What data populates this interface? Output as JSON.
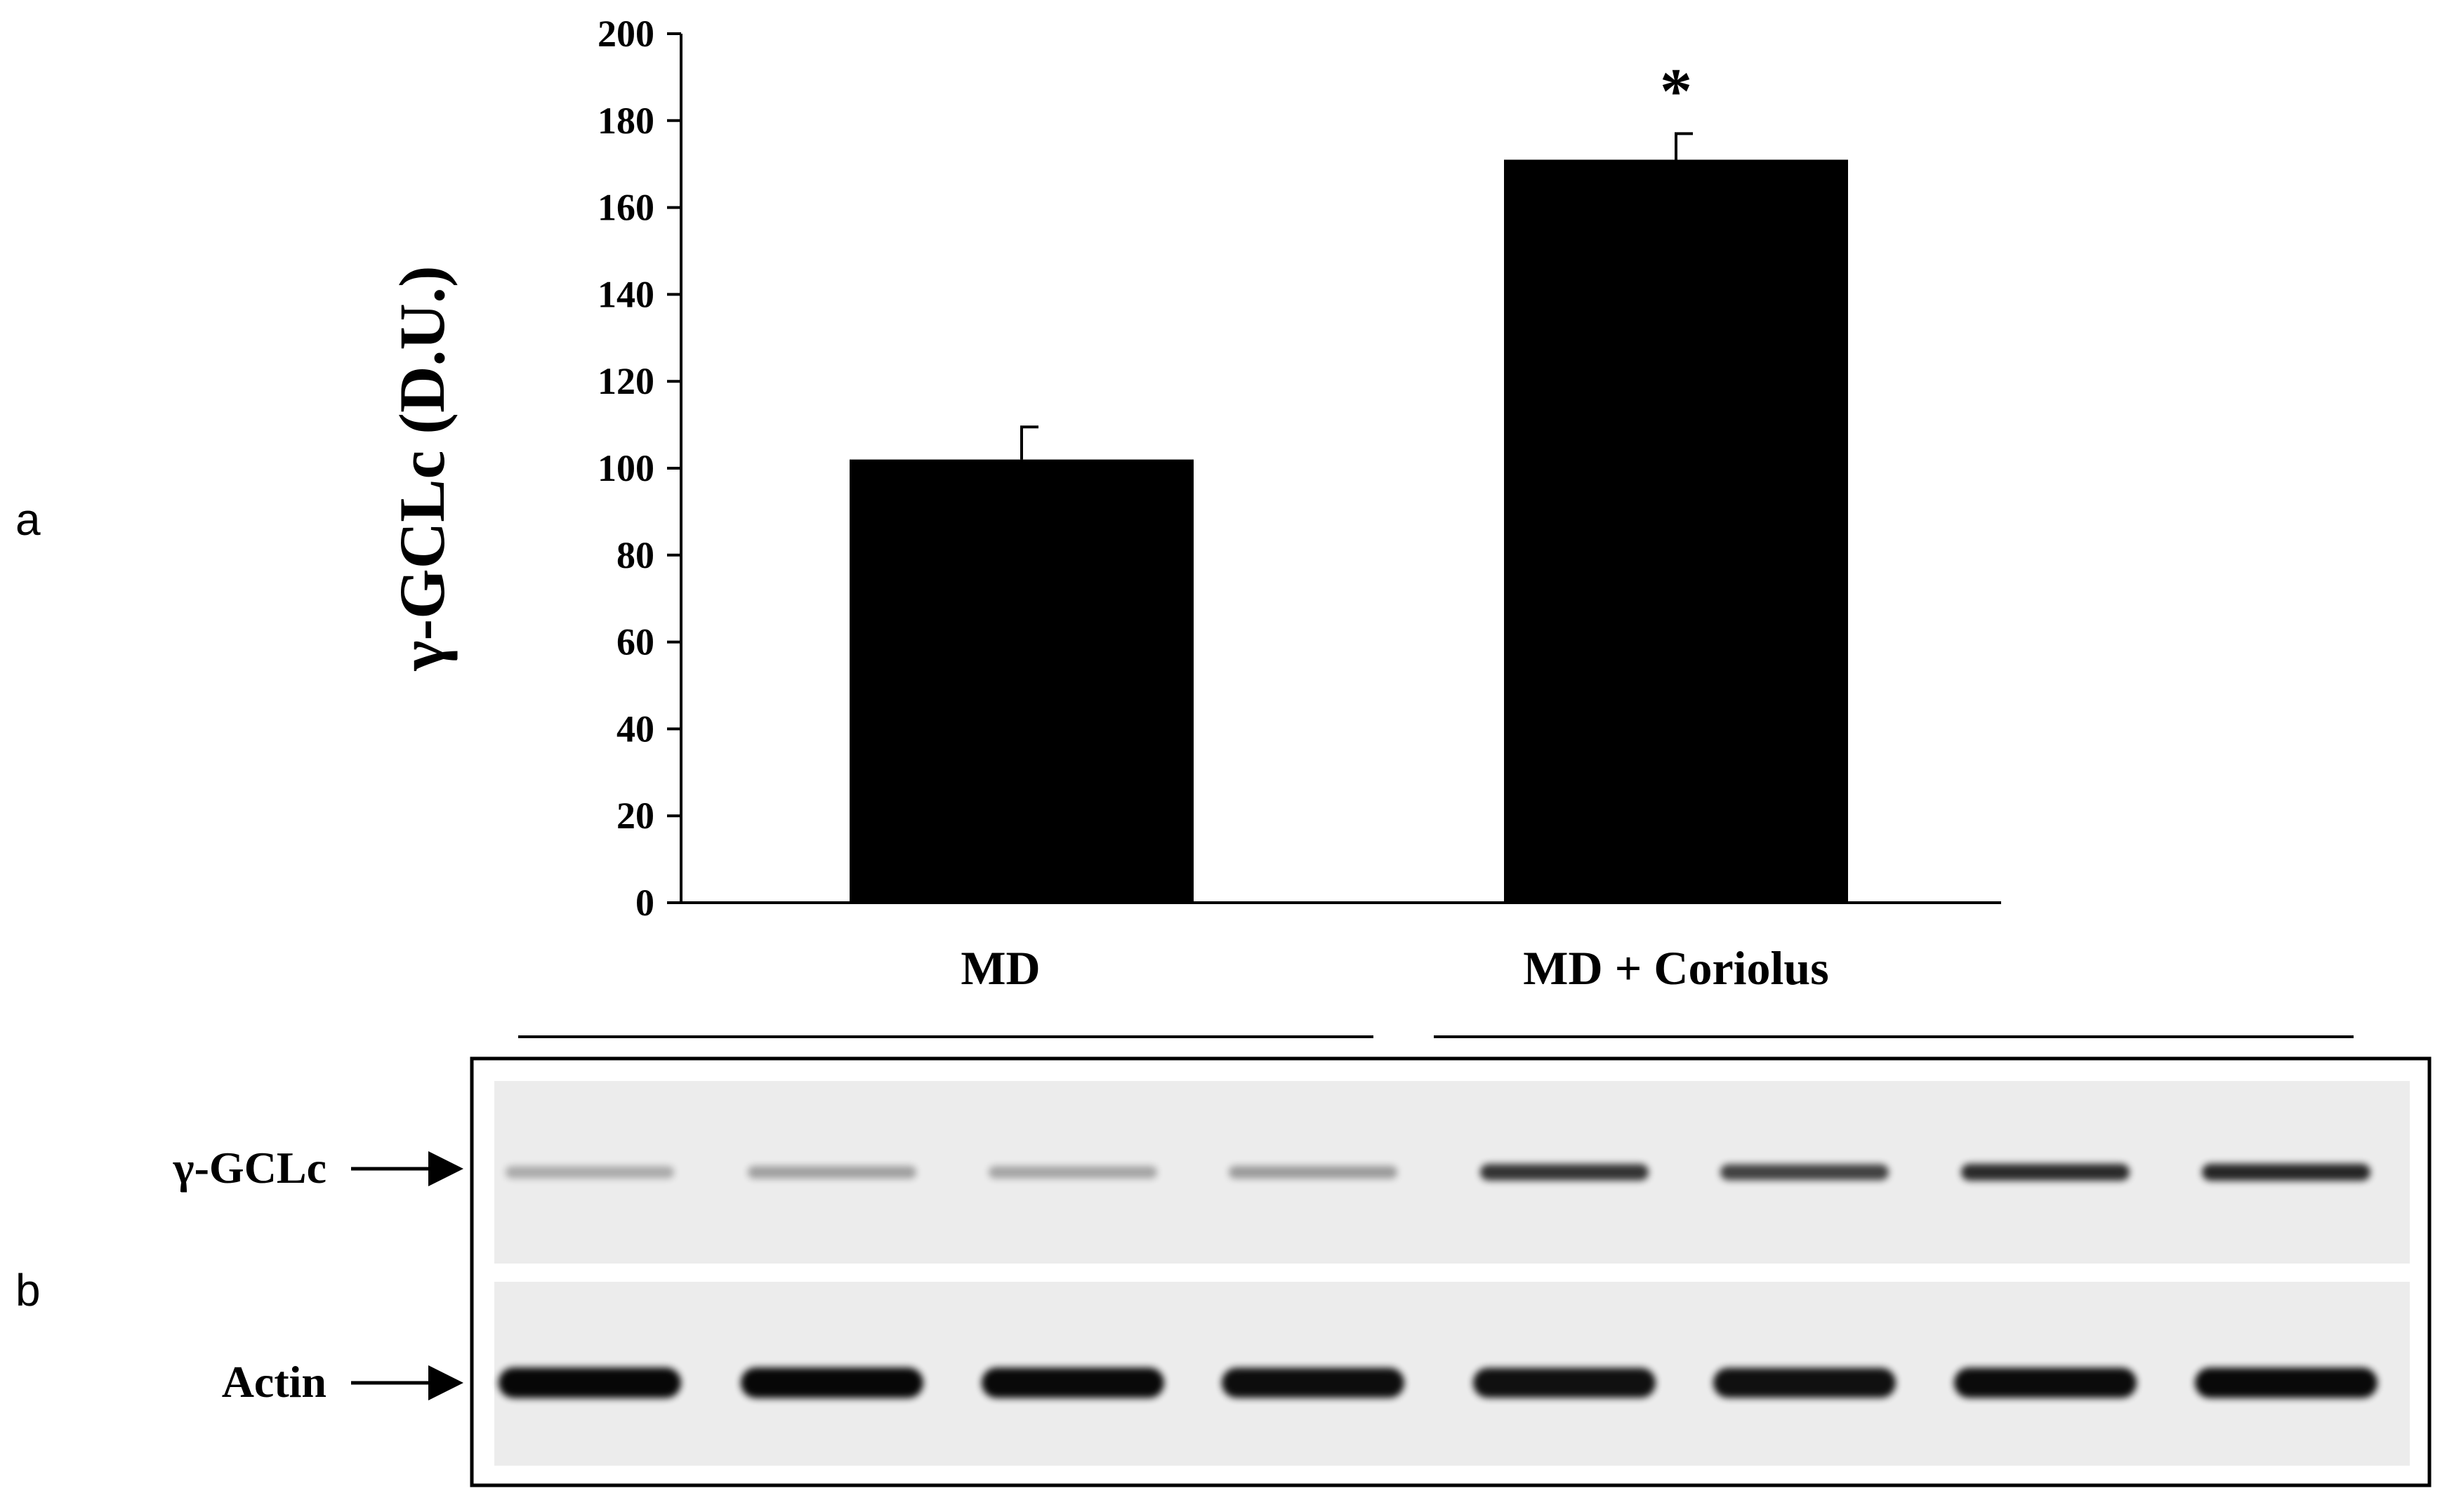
{
  "panels": {
    "a": "a",
    "b": "b"
  },
  "chart_data": {
    "type": "bar",
    "categories": [
      "MD",
      "MD + Coriolus"
    ],
    "values": [
      102,
      171
    ],
    "errors": [
      7.5,
      6
    ],
    "significance": [
      "",
      "*"
    ],
    "title": "",
    "xlabel": "",
    "ylabel": "γ-GCLc  (D.U.)",
    "ylim": [
      0,
      200
    ],
    "yticks": [
      0,
      20,
      40,
      60,
      80,
      100,
      120,
      140,
      160,
      180,
      200
    ],
    "bar_color": "#000000",
    "grid": false
  },
  "blot": {
    "group_labels": [
      "MD",
      "MD + Coriolus"
    ],
    "lanes_per_group": 4,
    "rows": [
      {
        "label": "γ-GCLc",
        "band_intensity": [
          0.28,
          0.32,
          0.3,
          0.34,
          0.78,
          0.72,
          0.82,
          0.84
        ]
      },
      {
        "label": "Actin",
        "band_intensity": [
          0.97,
          0.97,
          0.96,
          0.94,
          0.93,
          0.93,
          0.95,
          0.96
        ]
      }
    ]
  }
}
